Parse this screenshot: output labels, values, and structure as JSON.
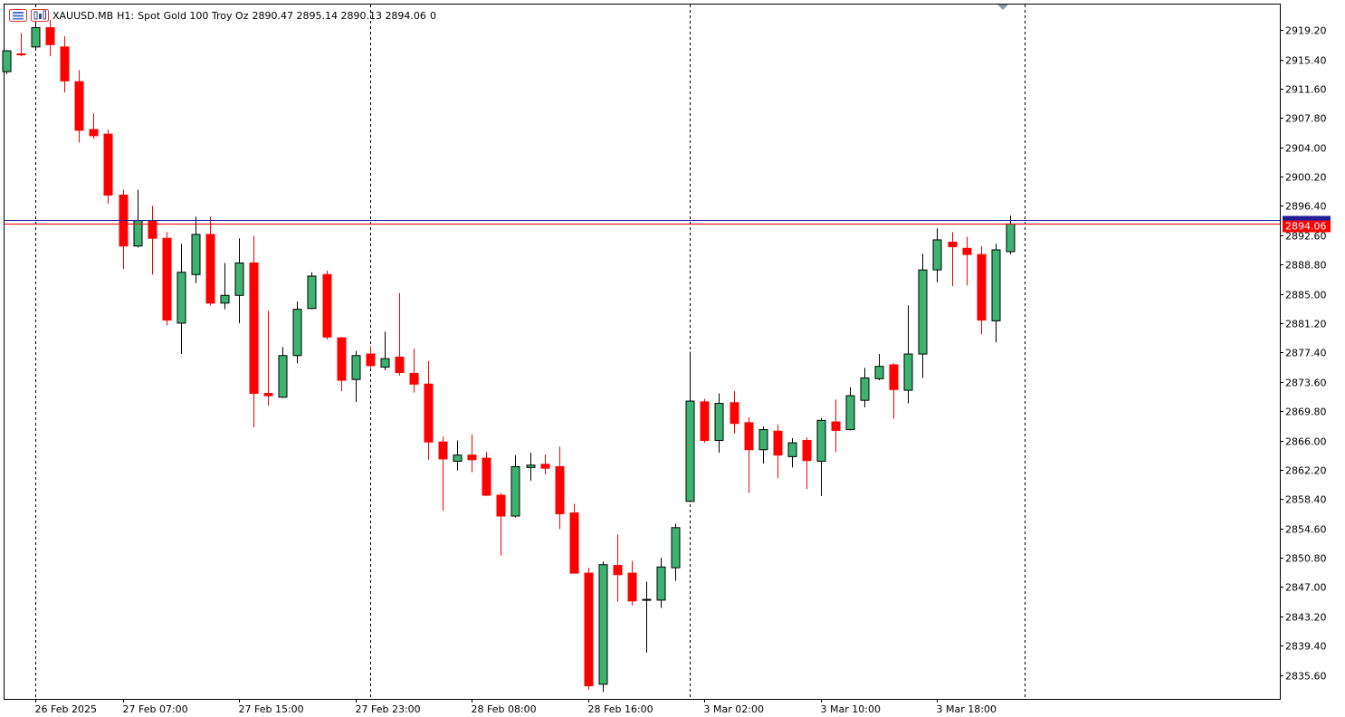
{
  "header": {
    "symbol": "XAUUSD.MB",
    "timeframe": "H1:",
    "description": "Spot Gold 100 Troy Oz",
    "ohlc": "2890.47 2895.14 2890.13 2894.06",
    "extra": "0"
  },
  "price_label": "2894.06",
  "colors": {
    "bull": "#3cb371",
    "bear": "#ff0000",
    "outline": "#000000",
    "bid_line": "#ff0000",
    "ask_line": "#1e1e99",
    "grid": "#000000"
  },
  "chart_data": {
    "type": "candlestick",
    "title": "",
    "ylim": [
      2832.5,
      2922.5
    ],
    "y_ticks": [
      "2919.20",
      "2915.40",
      "2911.60",
      "2907.80",
      "2904.00",
      "2900.20",
      "2896.40",
      "2892.60",
      "2888.80",
      "2885.00",
      "2881.20",
      "2877.40",
      "2873.60",
      "2869.80",
      "2866.00",
      "2862.20",
      "2858.40",
      "2854.60",
      "2850.80",
      "2847.00",
      "2843.20",
      "2839.40",
      "2835.60"
    ],
    "x_labels": [
      {
        "index": 2,
        "label": "26 Feb 2025"
      },
      {
        "index": 8,
        "label": "27 Feb 07:00"
      },
      {
        "index": 16,
        "label": "27 Feb 15:00"
      },
      {
        "index": 24,
        "label": "27 Feb 23:00"
      },
      {
        "index": 32,
        "label": "28 Feb 08:00"
      },
      {
        "index": 40,
        "label": "28 Feb 16:00"
      },
      {
        "index": 48,
        "label": "3 Mar 02:00"
      },
      {
        "index": 56,
        "label": "3 Mar 10:00"
      },
      {
        "index": 64,
        "label": "3 Mar 18:00"
      }
    ],
    "separators": [
      2,
      25,
      47,
      70
    ],
    "bid": 2894.06,
    "ask": 2894.55,
    "candles": [
      {
        "o": 2913.8,
        "h": 2916.6,
        "l": 2913.5,
        "c": 2916.5
      },
      {
        "o": 2916.1,
        "h": 2918.8,
        "l": 2915.8,
        "c": 2916.0
      },
      {
        "o": 2917.0,
        "h": 2921.0,
        "l": 2916.5,
        "c": 2919.5
      },
      {
        "o": 2919.5,
        "h": 2920.5,
        "l": 2915.8,
        "c": 2917.3
      },
      {
        "o": 2917.0,
        "h": 2918.4,
        "l": 2911.1,
        "c": 2912.6
      },
      {
        "o": 2912.5,
        "h": 2914.0,
        "l": 2904.6,
        "c": 2906.2
      },
      {
        "o": 2906.3,
        "h": 2908.4,
        "l": 2905.1,
        "c": 2905.5
      },
      {
        "o": 2905.7,
        "h": 2906.3,
        "l": 2896.7,
        "c": 2897.8
      },
      {
        "o": 2897.8,
        "h": 2898.5,
        "l": 2888.2,
        "c": 2891.2
      },
      {
        "o": 2891.2,
        "h": 2898.5,
        "l": 2891.0,
        "c": 2894.5
      },
      {
        "o": 2894.5,
        "h": 2896.4,
        "l": 2887.5,
        "c": 2892.2
      },
      {
        "o": 2892.2,
        "h": 2893.0,
        "l": 2880.9,
        "c": 2881.6
      },
      {
        "o": 2881.2,
        "h": 2891.5,
        "l": 2877.2,
        "c": 2887.8
      },
      {
        "o": 2887.5,
        "h": 2895.0,
        "l": 2886.4,
        "c": 2892.7
      },
      {
        "o": 2892.7,
        "h": 2895.0,
        "l": 2883.5,
        "c": 2883.8
      },
      {
        "o": 2883.8,
        "h": 2889.0,
        "l": 2883.0,
        "c": 2884.8
      },
      {
        "o": 2884.8,
        "h": 2892.2,
        "l": 2881.2,
        "c": 2889.0
      },
      {
        "o": 2889.0,
        "h": 2892.5,
        "l": 2867.7,
        "c": 2872.1
      },
      {
        "o": 2872.1,
        "h": 2882.8,
        "l": 2870.5,
        "c": 2871.8
      },
      {
        "o": 2871.6,
        "h": 2878.1,
        "l": 2871.5,
        "c": 2877.0
      },
      {
        "o": 2877.0,
        "h": 2884.0,
        "l": 2876.0,
        "c": 2883.0
      },
      {
        "o": 2883.1,
        "h": 2887.8,
        "l": 2883.0,
        "c": 2887.3
      },
      {
        "o": 2887.5,
        "h": 2888.0,
        "l": 2879.1,
        "c": 2879.4
      },
      {
        "o": 2879.3,
        "h": 2879.4,
        "l": 2872.4,
        "c": 2873.8
      },
      {
        "o": 2873.9,
        "h": 2877.6,
        "l": 2871.0,
        "c": 2877.0
      },
      {
        "o": 2877.2,
        "h": 2878.2,
        "l": 2875.4,
        "c": 2875.7
      },
      {
        "o": 2875.5,
        "h": 2880.1,
        "l": 2875.1,
        "c": 2876.6
      },
      {
        "o": 2876.8,
        "h": 2885.1,
        "l": 2874.4,
        "c": 2874.8
      },
      {
        "o": 2874.7,
        "h": 2877.9,
        "l": 2872.2,
        "c": 2873.3
      },
      {
        "o": 2873.3,
        "h": 2876.3,
        "l": 2863.5,
        "c": 2865.8
      },
      {
        "o": 2865.8,
        "h": 2866.5,
        "l": 2856.9,
        "c": 2863.6
      },
      {
        "o": 2863.3,
        "h": 2866.0,
        "l": 2862.1,
        "c": 2864.1
      },
      {
        "o": 2864.1,
        "h": 2866.8,
        "l": 2861.9,
        "c": 2863.5
      },
      {
        "o": 2863.7,
        "h": 2864.5,
        "l": 2858.8,
        "c": 2858.9
      },
      {
        "o": 2858.9,
        "h": 2859.2,
        "l": 2851.1,
        "c": 2856.2
      },
      {
        "o": 2856.2,
        "h": 2864.1,
        "l": 2856.0,
        "c": 2862.6
      },
      {
        "o": 2862.5,
        "h": 2864.4,
        "l": 2860.8,
        "c": 2862.8
      },
      {
        "o": 2862.9,
        "h": 2864.2,
        "l": 2861.6,
        "c": 2862.4
      },
      {
        "o": 2862.6,
        "h": 2865.2,
        "l": 2854.5,
        "c": 2856.5
      },
      {
        "o": 2856.6,
        "h": 2857.8,
        "l": 2848.8,
        "c": 2848.8
      },
      {
        "o": 2848.8,
        "h": 2849.5,
        "l": 2833.7,
        "c": 2834.2
      },
      {
        "o": 2834.4,
        "h": 2850.3,
        "l": 2833.4,
        "c": 2849.9
      },
      {
        "o": 2849.8,
        "h": 2853.8,
        "l": 2845.1,
        "c": 2848.6
      },
      {
        "o": 2848.8,
        "h": 2850.4,
        "l": 2844.6,
        "c": 2845.2
      },
      {
        "o": 2845.4,
        "h": 2847.7,
        "l": 2838.5,
        "c": 2845.4
      },
      {
        "o": 2845.3,
        "h": 2850.8,
        "l": 2844.3,
        "c": 2849.6
      },
      {
        "o": 2849.5,
        "h": 2855.2,
        "l": 2847.8,
        "c": 2854.7
      },
      {
        "o": 2858.1,
        "h": 2877.5,
        "l": 2858.0,
        "c": 2871.1
      },
      {
        "o": 2871.0,
        "h": 2871.4,
        "l": 2865.7,
        "c": 2866.0
      },
      {
        "o": 2866.0,
        "h": 2872.1,
        "l": 2864.4,
        "c": 2870.8
      },
      {
        "o": 2870.9,
        "h": 2872.4,
        "l": 2866.9,
        "c": 2868.2
      },
      {
        "o": 2868.3,
        "h": 2869.0,
        "l": 2859.2,
        "c": 2864.8
      },
      {
        "o": 2864.8,
        "h": 2867.8,
        "l": 2863.0,
        "c": 2867.4
      },
      {
        "o": 2867.2,
        "h": 2868.1,
        "l": 2861.1,
        "c": 2864.1
      },
      {
        "o": 2863.9,
        "h": 2866.3,
        "l": 2862.5,
        "c": 2865.7
      },
      {
        "o": 2866.0,
        "h": 2866.4,
        "l": 2859.7,
        "c": 2863.4
      },
      {
        "o": 2863.3,
        "h": 2868.9,
        "l": 2858.8,
        "c": 2868.6
      },
      {
        "o": 2868.4,
        "h": 2871.3,
        "l": 2864.5,
        "c": 2867.3
      },
      {
        "o": 2867.4,
        "h": 2872.9,
        "l": 2867.3,
        "c": 2871.8
      },
      {
        "o": 2871.2,
        "h": 2875.4,
        "l": 2870.3,
        "c": 2874.1
      },
      {
        "o": 2874.0,
        "h": 2877.2,
        "l": 2873.8,
        "c": 2875.6
      },
      {
        "o": 2875.8,
        "h": 2876.0,
        "l": 2868.8,
        "c": 2872.6
      },
      {
        "o": 2872.5,
        "h": 2883.5,
        "l": 2870.8,
        "c": 2877.2
      },
      {
        "o": 2877.2,
        "h": 2890.2,
        "l": 2874.1,
        "c": 2888.1
      },
      {
        "o": 2888.1,
        "h": 2893.5,
        "l": 2886.5,
        "c": 2892.0
      },
      {
        "o": 2891.7,
        "h": 2893.0,
        "l": 2886.0,
        "c": 2891.1
      },
      {
        "o": 2890.9,
        "h": 2892.4,
        "l": 2886.1,
        "c": 2890.1
      },
      {
        "o": 2890.1,
        "h": 2891.2,
        "l": 2879.8,
        "c": 2881.6
      },
      {
        "o": 2881.5,
        "h": 2891.5,
        "l": 2878.7,
        "c": 2890.7
      },
      {
        "o": 2890.47,
        "h": 2895.14,
        "l": 2890.13,
        "c": 2894.06
      }
    ]
  }
}
